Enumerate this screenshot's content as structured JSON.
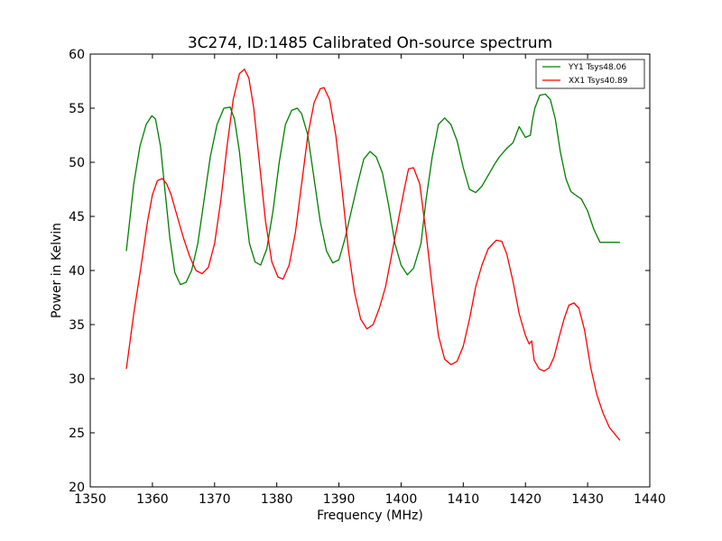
{
  "chart_data": {
    "type": "line",
    "title": "3C274, ID:1485 Calibrated On-source spectrum",
    "xlabel": "Frequency (MHz)",
    "ylabel": "Power in Kelvin",
    "xlim": [
      1350,
      1440
    ],
    "ylim": [
      20,
      60
    ],
    "xticks": [
      1350,
      1360,
      1370,
      1380,
      1390,
      1400,
      1410,
      1420,
      1430,
      1440
    ],
    "yticks": [
      20,
      25,
      30,
      35,
      40,
      45,
      50,
      55,
      60
    ],
    "grid": false,
    "legend_position": "top-right",
    "series": [
      {
        "name": "YY1 Tsys48.06",
        "color": "#008000",
        "x": [
          1355.8,
          1357.0,
          1358.0,
          1359.0,
          1359.9,
          1360.5,
          1361.3,
          1362.0,
          1362.8,
          1363.6,
          1364.5,
          1365.4,
          1366.3,
          1367.3,
          1368.3,
          1369.3,
          1370.4,
          1371.5,
          1372.5,
          1373.2,
          1374.0,
          1374.8,
          1375.6,
          1376.5,
          1377.4,
          1378.4,
          1379.4,
          1380.4,
          1381.4,
          1382.4,
          1383.3,
          1384.0,
          1385.0,
          1386.0,
          1387.0,
          1388.0,
          1389.0,
          1390.0,
          1391.0,
          1392.0,
          1393.0,
          1394.0,
          1395.0,
          1396.0,
          1397.0,
          1398.0,
          1399.0,
          1400.0,
          1401.0,
          1402.0,
          1403.2,
          1404.0,
          1405.0,
          1406.0,
          1407.0,
          1408.0,
          1409.0,
          1410.0,
          1411.0,
          1412.0,
          1413.0,
          1414.0,
          1415.0,
          1415.8,
          1417.0,
          1418.0,
          1419.0,
          1420.0,
          1420.8,
          1421.1,
          1421.5,
          1422.3,
          1423.2,
          1424.0,
          1424.8,
          1425.6,
          1426.5,
          1427.3,
          1428.0,
          1429.0,
          1430.0,
          1431.0,
          1432.0,
          1433.0,
          1434.0,
          1435.2
        ],
        "values": [
          41.8,
          48.0,
          51.5,
          53.5,
          54.3,
          54.0,
          51.5,
          47.5,
          43.0,
          39.8,
          38.7,
          38.9,
          40.0,
          42.5,
          46.5,
          50.5,
          53.5,
          55.0,
          55.1,
          54.0,
          51.0,
          46.5,
          42.5,
          40.8,
          40.5,
          42.0,
          45.5,
          50.0,
          53.5,
          54.8,
          55.0,
          54.5,
          52.5,
          48.5,
          44.5,
          41.8,
          40.7,
          41.0,
          43.0,
          45.5,
          48.0,
          50.3,
          51.0,
          50.5,
          49.0,
          46.0,
          42.5,
          40.5,
          39.6,
          40.2,
          42.5,
          46.5,
          50.5,
          53.5,
          54.1,
          53.5,
          52.0,
          49.5,
          47.5,
          47.2,
          47.8,
          48.8,
          49.8,
          50.5,
          51.3,
          51.8,
          53.3,
          52.3,
          52.5,
          53.8,
          55.0,
          56.2,
          56.3,
          55.8,
          54.0,
          51.0,
          48.5,
          47.3,
          47.0,
          46.6,
          45.5,
          43.8,
          42.6,
          42.6,
          42.6,
          42.6
        ],
        "_note_values_len": 0
      },
      {
        "name": "XX1 Tsys40.89",
        "color": "#ff0000",
        "x": [
          1355.8,
          1357.0,
          1358.2,
          1359.2,
          1360.0,
          1360.8,
          1361.6,
          1362.3,
          1363.0,
          1364.0,
          1365.0,
          1366.0,
          1367.0,
          1368.0,
          1369.0,
          1370.0,
          1371.0,
          1372.0,
          1373.0,
          1374.0,
          1374.8,
          1375.5,
          1376.3,
          1377.2,
          1378.2,
          1379.2,
          1380.2,
          1381.0,
          1382.0,
          1383.0,
          1384.0,
          1385.0,
          1386.0,
          1387.0,
          1387.6,
          1388.5,
          1389.5,
          1390.5,
          1391.5,
          1392.5,
          1393.5,
          1394.5,
          1395.5,
          1396.5,
          1397.5,
          1398.5,
          1399.5,
          1400.5,
          1401.2,
          1402.0,
          1403.0,
          1404.0,
          1405.0,
          1406.0,
          1407.0,
          1408.0,
          1409.0,
          1410.0,
          1411.0,
          1412.0,
          1413.0,
          1414.0,
          1415.3,
          1416.2,
          1417.0,
          1418.0,
          1419.0,
          1420.0,
          1420.6,
          1421.0,
          1421.4,
          1422.2,
          1423.0,
          1423.8,
          1424.6,
          1425.4,
          1426.2,
          1427.0,
          1427.8,
          1428.6,
          1429.5,
          1430.5,
          1431.5,
          1432.5,
          1433.5,
          1434.5,
          1435.2
        ],
        "values": [
          30.9,
          36.0,
          40.5,
          44.5,
          47.0,
          48.3,
          48.5,
          48.0,
          47.0,
          45.0,
          43.0,
          41.3,
          40.0,
          39.7,
          40.3,
          42.5,
          46.5,
          51.5,
          55.8,
          58.2,
          58.6,
          57.8,
          55.0,
          50.0,
          44.5,
          40.8,
          39.4,
          39.2,
          40.5,
          43.5,
          48.0,
          52.5,
          55.5,
          56.8,
          56.9,
          55.8,
          52.5,
          47.5,
          42.0,
          38.0,
          35.5,
          34.6,
          35.0,
          36.5,
          38.5,
          41.5,
          44.5,
          47.5,
          49.4,
          49.5,
          48.0,
          43.5,
          38.5,
          34.0,
          31.8,
          31.3,
          31.6,
          33.0,
          35.5,
          38.5,
          40.5,
          42.0,
          42.8,
          42.7,
          41.5,
          39.0,
          36.0,
          34.0,
          33.2,
          33.5,
          31.7,
          30.9,
          30.7,
          31.0,
          32.0,
          33.8,
          35.5,
          36.8,
          37.0,
          36.5,
          34.5,
          31.0,
          28.5,
          26.8,
          25.5,
          24.8,
          24.3
        ]
      }
    ]
  }
}
